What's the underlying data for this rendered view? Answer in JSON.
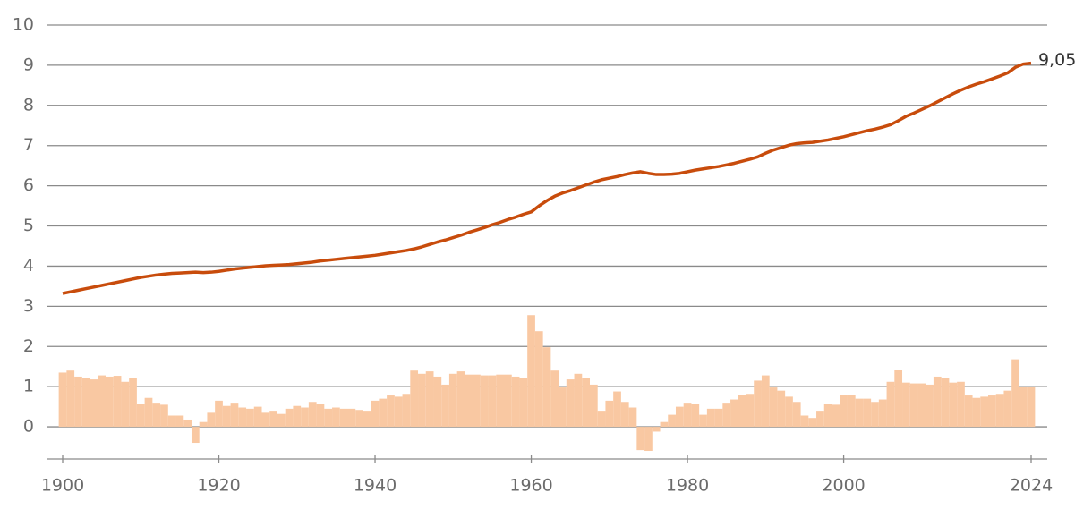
{
  "chart_data": {
    "type": "combo",
    "x": [
      1900,
      1901,
      1902,
      1903,
      1904,
      1905,
      1906,
      1907,
      1908,
      1909,
      1910,
      1911,
      1912,
      1913,
      1914,
      1915,
      1916,
      1917,
      1918,
      1919,
      1920,
      1921,
      1922,
      1923,
      1924,
      1925,
      1926,
      1927,
      1928,
      1929,
      1930,
      1931,
      1932,
      1933,
      1934,
      1935,
      1936,
      1937,
      1938,
      1939,
      1940,
      1941,
      1942,
      1943,
      1944,
      1945,
      1946,
      1947,
      1948,
      1949,
      1950,
      1951,
      1952,
      1953,
      1954,
      1955,
      1956,
      1957,
      1958,
      1959,
      1960,
      1961,
      1962,
      1963,
      1964,
      1965,
      1966,
      1967,
      1968,
      1969,
      1970,
      1971,
      1972,
      1973,
      1974,
      1975,
      1976,
      1977,
      1978,
      1979,
      1980,
      1981,
      1982,
      1983,
      1984,
      1985,
      1986,
      1987,
      1988,
      1989,
      1990,
      1991,
      1992,
      1993,
      1994,
      1995,
      1996,
      1997,
      1998,
      1999,
      2000,
      2001,
      2002,
      2003,
      2004,
      2005,
      2006,
      2007,
      2008,
      2009,
      2010,
      2011,
      2012,
      2013,
      2014,
      2015,
      2016,
      2017,
      2018,
      2019,
      2020,
      2021,
      2022,
      2023,
      2024
    ],
    "series": [
      {
        "type": "bar",
        "color": "#f9c8a2",
        "values": [
          1.35,
          1.4,
          1.25,
          1.22,
          1.18,
          1.28,
          1.25,
          1.27,
          1.12,
          1.22,
          0.58,
          0.72,
          0.6,
          0.55,
          0.28,
          0.28,
          0.18,
          -0.4,
          0.12,
          0.35,
          0.65,
          0.52,
          0.6,
          0.48,
          0.45,
          0.5,
          0.35,
          0.4,
          0.32,
          0.45,
          0.52,
          0.48,
          0.62,
          0.58,
          0.45,
          0.48,
          0.45,
          0.45,
          0.42,
          0.4,
          0.65,
          0.7,
          0.78,
          0.75,
          0.82,
          1.4,
          1.32,
          1.38,
          1.25,
          1.05,
          1.32,
          1.38,
          1.3,
          1.3,
          1.28,
          1.28,
          1.3,
          1.3,
          1.25,
          1.22,
          2.78,
          2.38,
          1.98,
          1.4,
          0.98,
          1.18,
          1.32,
          1.22,
          1.05,
          0.4,
          0.65,
          0.88,
          0.62,
          0.48,
          -0.58,
          -0.6,
          -0.12,
          0.12,
          0.3,
          0.5,
          0.6,
          0.58,
          0.3,
          0.45,
          0.45,
          0.6,
          0.68,
          0.8,
          0.82,
          1.15,
          1.28,
          0.98,
          0.9,
          0.75,
          0.62,
          0.28,
          0.22,
          0.4,
          0.58,
          0.55,
          0.8,
          0.8,
          0.7,
          0.7,
          0.62,
          0.68,
          1.12,
          1.42,
          1.1,
          1.08,
          1.08,
          1.05,
          1.25,
          1.22,
          1.1,
          1.12,
          0.78,
          0.72,
          0.75,
          0.78,
          0.82,
          0.9,
          1.68,
          1.0,
          1.0
        ]
      },
      {
        "type": "line",
        "color": "#c84c0c",
        "values": [
          3.32,
          3.36,
          3.4,
          3.44,
          3.48,
          3.52,
          3.56,
          3.6,
          3.64,
          3.68,
          3.72,
          3.75,
          3.78,
          3.8,
          3.82,
          3.83,
          3.84,
          3.85,
          3.84,
          3.85,
          3.87,
          3.9,
          3.93,
          3.95,
          3.97,
          3.99,
          4.01,
          4.02,
          4.03,
          4.04,
          4.06,
          4.08,
          4.1,
          4.13,
          4.15,
          4.17,
          4.19,
          4.21,
          4.23,
          4.25,
          4.27,
          4.3,
          4.33,
          4.36,
          4.39,
          4.43,
          4.48,
          4.54,
          4.6,
          4.65,
          4.71,
          4.77,
          4.84,
          4.9,
          4.96,
          5.03,
          5.09,
          5.16,
          5.22,
          5.29,
          5.35,
          5.5,
          5.63,
          5.74,
          5.82,
          5.88,
          5.95,
          6.02,
          6.09,
          6.15,
          6.19,
          6.23,
          6.28,
          6.32,
          6.35,
          6.31,
          6.28,
          6.28,
          6.29,
          6.31,
          6.35,
          6.39,
          6.42,
          6.45,
          6.48,
          6.52,
          6.56,
          6.61,
          6.66,
          6.72,
          6.81,
          6.89,
          6.95,
          7.01,
          7.05,
          7.07,
          7.08,
          7.11,
          7.14,
          7.18,
          7.22,
          7.27,
          7.32,
          7.37,
          7.41,
          7.46,
          7.52,
          7.62,
          7.73,
          7.81,
          7.9,
          7.99,
          8.09,
          8.19,
          8.29,
          8.38,
          8.46,
          8.53,
          8.59,
          8.66,
          8.73,
          8.81,
          8.95,
          9.03,
          9.05
        ],
        "value_labels": [
          null,
          null,
          null,
          null,
          null,
          null,
          null,
          null,
          null,
          null,
          null,
          null,
          null,
          null,
          null,
          null,
          null,
          null,
          null,
          null,
          null,
          null,
          null,
          null,
          null,
          null,
          null,
          null,
          null,
          null,
          null,
          null,
          null,
          null,
          null,
          null,
          null,
          null,
          null,
          null,
          null,
          null,
          null,
          null,
          null,
          null,
          null,
          null,
          null,
          null,
          null,
          null,
          null,
          null,
          null,
          null,
          null,
          null,
          null,
          null,
          null,
          null,
          null,
          null,
          null,
          null,
          null,
          null,
          null,
          null,
          null,
          null,
          null,
          null,
          null,
          null,
          null,
          null,
          null,
          null,
          null,
          null,
          null,
          null,
          null,
          null,
          null,
          null,
          null,
          null,
          null,
          null,
          null,
          null,
          null,
          null,
          null,
          null,
          null,
          null,
          null,
          null,
          null,
          null,
          null,
          null,
          null,
          null,
          null,
          null,
          null,
          null,
          null,
          null,
          null,
          null,
          null,
          null,
          null,
          null,
          null,
          null,
          null,
          null,
          "9,05"
        ]
      }
    ],
    "xlim": [
      1900,
      2024
    ],
    "xticks": [
      1900,
      1920,
      1940,
      1960,
      1980,
      2000,
      2024
    ],
    "ylim": [
      -0.8,
      10
    ],
    "yticks": [
      0,
      1,
      2,
      3,
      4,
      5,
      6,
      7,
      8,
      9,
      10
    ],
    "grid": true
  }
}
